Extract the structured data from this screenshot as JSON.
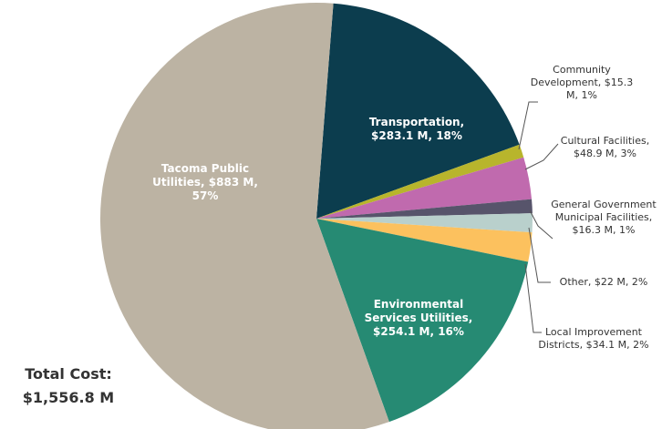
{
  "chart_data": {
    "type": "pie",
    "value_labels": [
      "Transportation, $283.1 M, 18%",
      "Community Development, $15.3 M, 1%",
      "Cultural Facilities, $48.9 M, 3%",
      "General Government Municipal Facilities, $16.3 M, 1%",
      "Other, $22 M, 2%",
      "Local Improvement Districts, $34.1 M, 2%",
      "Environmental Services Utilities, $254.1 M, 16%",
      "Tacoma Public Utilities, $883 M, 57%"
    ],
    "values": [
      283.1,
      15.3,
      48.9,
      16.3,
      22,
      34.1,
      254.1,
      883
    ],
    "colors": [
      "#0c3d4e",
      "#b8b52c",
      "#c06aae",
      "#57546b",
      "#b9d0cc",
      "#fcc15e",
      "#268a73",
      "#bcb3a3"
    ],
    "total_label": "Total Cost:",
    "total": "$1,556.8 M"
  }
}
